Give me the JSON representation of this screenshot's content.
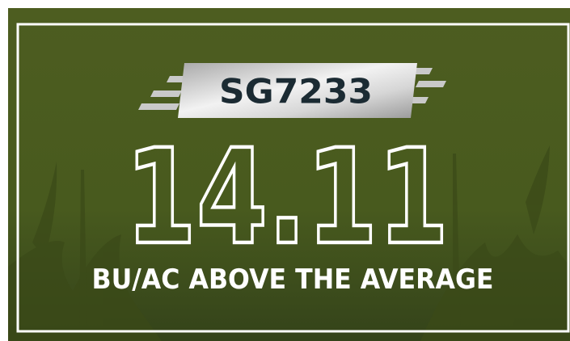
{
  "badge": {
    "label": "SG7233"
  },
  "headline": {
    "value": "14.11",
    "caption": "BU/AC ABOVE THE AVERAGE"
  }
}
